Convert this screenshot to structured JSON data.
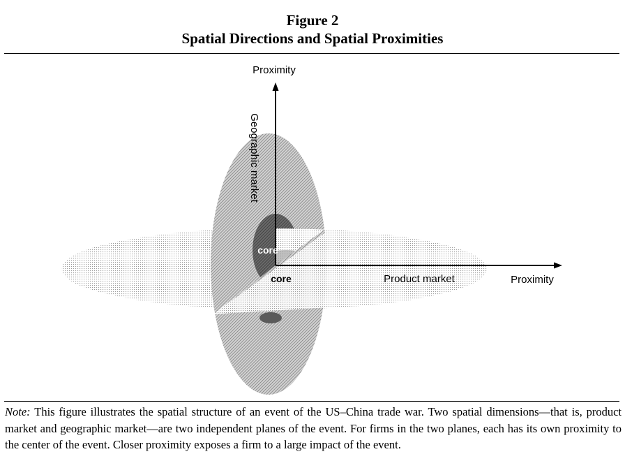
{
  "figure": {
    "number_label": "Figure 2",
    "title": "Spatial Directions and Spatial Proximities"
  },
  "diagram": {
    "vertical_axis_label": "Proximity",
    "horizontal_axis_label": "Proximity",
    "vertical_plane_label": "Geographic market",
    "horizontal_plane_label": "Product market",
    "core_label_vertical": "core",
    "core_label_horizontal": "core"
  },
  "note": {
    "label": "Note:",
    "text": " This figure illustrates the spatial structure of an event of the US–China trade war. Two spatial dimensions—that is, product market and geographic market—are two independent planes of the event. For firms in the two planes, each has its own proximity to the center of the event. Closer proximity exposes a firm to a large impact of the event."
  }
}
